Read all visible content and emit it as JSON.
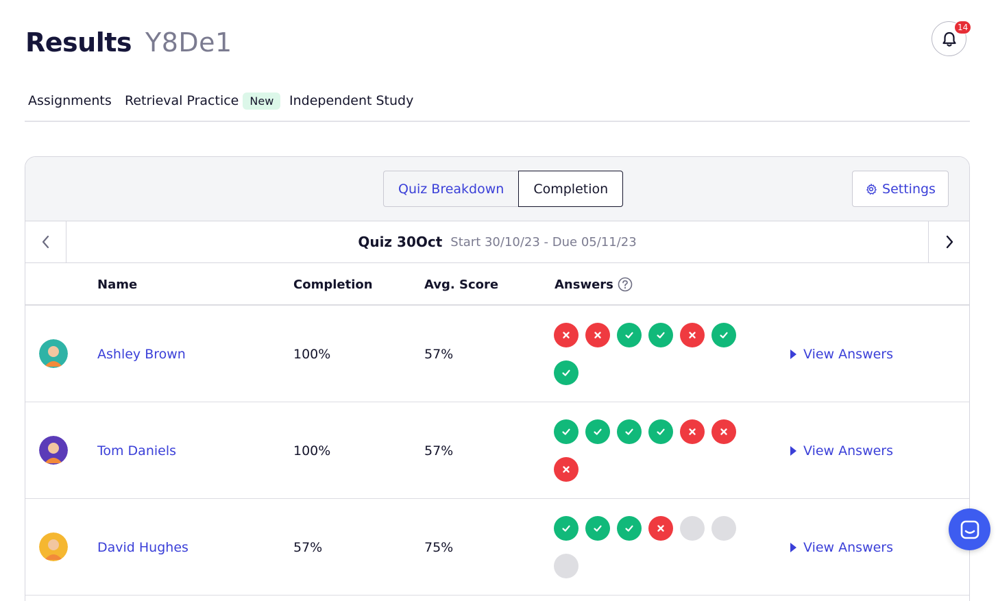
{
  "header": {
    "title": "Results",
    "class_code": "Y8De1",
    "notification_count": "14"
  },
  "tabs": [
    {
      "label": "Assignments"
    },
    {
      "label": "Retrieval Practice",
      "badge": "New"
    },
    {
      "label": "Independent Study"
    }
  ],
  "panel": {
    "segments": [
      {
        "label": "Quiz Breakdown"
      },
      {
        "label": "Completion",
        "active": true
      }
    ],
    "settings_label": "Settings",
    "quiz": {
      "name": "Quiz 30Oct",
      "dates": "Start 30/10/23 - Due 05/11/23"
    },
    "columns": {
      "name": "Name",
      "completion": "Completion",
      "avg_score": "Avg. Score",
      "answers": "Answers"
    },
    "students": [
      {
        "name": "Ashley Brown",
        "completion": "100%",
        "avg_score": "57%",
        "answers": [
          "wrong",
          "wrong",
          "correct",
          "correct",
          "wrong",
          "correct",
          "correct"
        ],
        "view_label": "View Answers",
        "avatar_color": "#2fb3a6"
      },
      {
        "name": "Tom Daniels",
        "completion": "100%",
        "avg_score": "57%",
        "answers": [
          "correct",
          "correct",
          "correct",
          "correct",
          "wrong",
          "wrong",
          "wrong"
        ],
        "view_label": "View Answers",
        "avatar_color": "#5b3bb8"
      },
      {
        "name": "David Hughes",
        "completion": "57%",
        "avg_score": "75%",
        "answers": [
          "correct",
          "correct",
          "correct",
          "wrong",
          "pending",
          "pending",
          "pending"
        ],
        "view_label": "View Answers",
        "avatar_color": "#f5b731"
      }
    ]
  },
  "colors": {
    "accent": "#3a3fd8",
    "correct": "#11b97a",
    "wrong": "#ef3a40",
    "pending": "#dedee2",
    "badge": "#e62e36"
  }
}
